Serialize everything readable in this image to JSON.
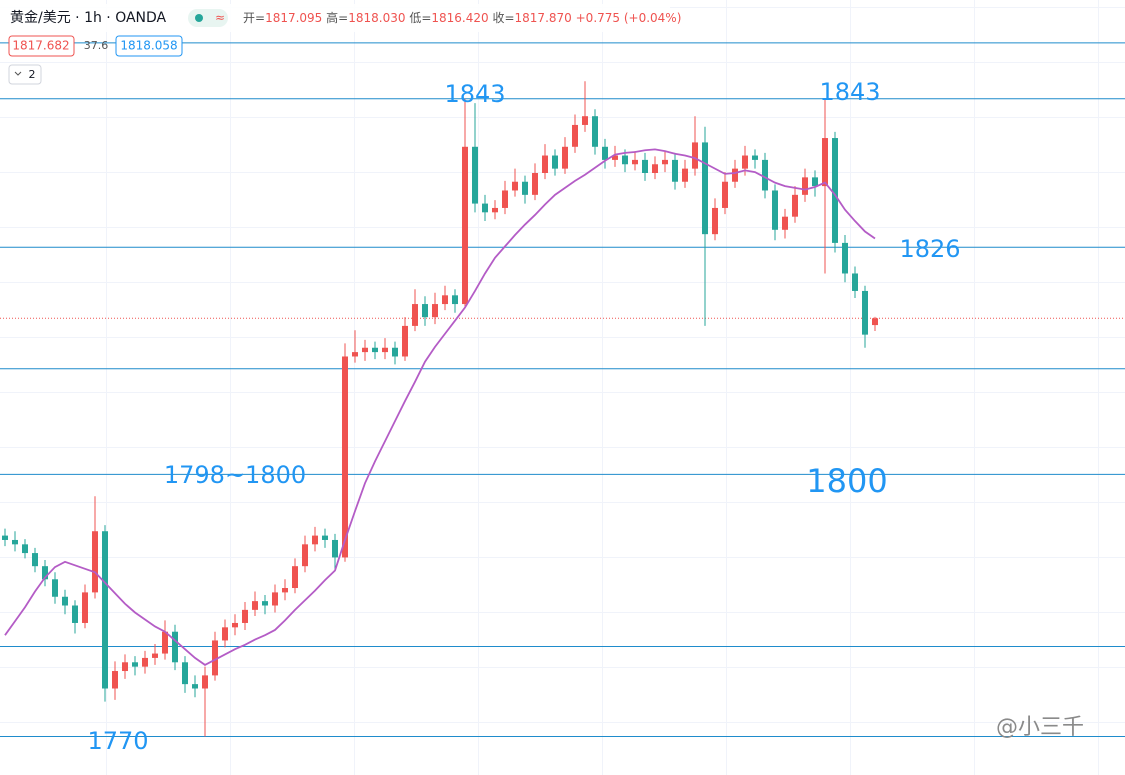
{
  "header": {
    "symbol": "黄金/美元 · 1h · OANDA",
    "ohlc": [
      {
        "label": "开=",
        "value": "1817.095"
      },
      {
        "label": "高=",
        "value": "1818.030"
      },
      {
        "label": "低=",
        "value": "1816.420"
      },
      {
        "label": "收=",
        "value": "1817.870"
      }
    ],
    "change": "+0.775 (+0.04%)",
    "bid": "1817.682",
    "spread": "37.6",
    "ask": "1818.058",
    "indicators": "2"
  },
  "watermark": "@小三千",
  "chart_data": {
    "type": "candlestick",
    "ylim": [
      1765.6,
      1854.3
    ],
    "up_color": "#ef5350",
    "down_color": "#26a69a",
    "line_color": "#1f8ccc",
    "price_line_color": "#ef5350",
    "hlines": [
      1849.4,
      1843,
      1826,
      1812.1,
      1800,
      1780.3,
      1770
    ],
    "annotations": [
      "1843",
      "1843",
      "1826",
      "1798~1800",
      "1800",
      "1770"
    ],
    "annotation_color": "#2196f3",
    "ohlc": [
      [
        1793.0,
        1793.8,
        1791.8,
        1792.5
      ],
      [
        1792.5,
        1793.5,
        1791.2,
        1792.0
      ],
      [
        1792.0,
        1792.6,
        1790.4,
        1791.0
      ],
      [
        1791.0,
        1791.6,
        1788.8,
        1789.5
      ],
      [
        1789.5,
        1790.2,
        1787.2,
        1788.0
      ],
      [
        1788.0,
        1788.8,
        1785.2,
        1786.0
      ],
      [
        1786.0,
        1786.8,
        1784.0,
        1785.0
      ],
      [
        1785.0,
        1785.6,
        1781.8,
        1783.0
      ],
      [
        1783.0,
        1787.4,
        1782.4,
        1786.5
      ],
      [
        1786.5,
        1797.5,
        1785.8,
        1793.5
      ],
      [
        1793.5,
        1794.2,
        1774.0,
        1775.5
      ],
      [
        1775.5,
        1778.6,
        1774.2,
        1777.5
      ],
      [
        1777.5,
        1779.4,
        1776.6,
        1778.5
      ],
      [
        1778.5,
        1779.2,
        1777.0,
        1778.0
      ],
      [
        1778.0,
        1779.8,
        1777.2,
        1779.0
      ],
      [
        1779.0,
        1780.6,
        1778.2,
        1779.5
      ],
      [
        1779.5,
        1783.3,
        1778.8,
        1782.0
      ],
      [
        1782.0,
        1782.8,
        1777.6,
        1778.5
      ],
      [
        1778.5,
        1779.2,
        1775.0,
        1776.0
      ],
      [
        1776.0,
        1777.0,
        1774.5,
        1775.5
      ],
      [
        1775.5,
        1778.0,
        1770.0,
        1777.0
      ],
      [
        1777.0,
        1782.0,
        1776.4,
        1781.0
      ],
      [
        1781.0,
        1783.4,
        1780.2,
        1782.5
      ],
      [
        1782.5,
        1784.0,
        1781.6,
        1783.0
      ],
      [
        1783.0,
        1785.4,
        1782.2,
        1784.5
      ],
      [
        1784.5,
        1786.6,
        1783.8,
        1785.5
      ],
      [
        1785.5,
        1786.2,
        1784.0,
        1785.0
      ],
      [
        1785.0,
        1787.4,
        1784.2,
        1786.5
      ],
      [
        1786.5,
        1788.0,
        1785.6,
        1787.0
      ],
      [
        1787.0,
        1790.4,
        1786.4,
        1789.5
      ],
      [
        1789.5,
        1793.0,
        1788.8,
        1792.0
      ],
      [
        1792.0,
        1794.0,
        1791.2,
        1793.0
      ],
      [
        1793.0,
        1793.8,
        1791.6,
        1792.5
      ],
      [
        1792.5,
        1793.2,
        1789.0,
        1790.5
      ],
      [
        1790.5,
        1815.0,
        1790.0,
        1813.5
      ],
      [
        1813.5,
        1816.5,
        1812.8,
        1814.0
      ],
      [
        1814.0,
        1815.4,
        1813.0,
        1814.5
      ],
      [
        1814.5,
        1815.2,
        1813.2,
        1814.0
      ],
      [
        1814.0,
        1815.6,
        1813.2,
        1814.5
      ],
      [
        1814.5,
        1815.2,
        1812.6,
        1813.5
      ],
      [
        1813.5,
        1818.0,
        1813.0,
        1817.0
      ],
      [
        1817.0,
        1821.2,
        1816.4,
        1819.5
      ],
      [
        1819.5,
        1820.4,
        1817.0,
        1818.0
      ],
      [
        1818.0,
        1820.8,
        1817.2,
        1819.5
      ],
      [
        1819.5,
        1821.6,
        1818.8,
        1820.5
      ],
      [
        1820.5,
        1821.2,
        1818.5,
        1819.5
      ],
      [
        1819.5,
        1843.0,
        1819.0,
        1837.5
      ],
      [
        1837.5,
        1842.5,
        1830.0,
        1831.0
      ],
      [
        1831.0,
        1832.0,
        1829.0,
        1830.0
      ],
      [
        1830.0,
        1831.4,
        1829.2,
        1830.5
      ],
      [
        1830.5,
        1833.6,
        1829.8,
        1832.5
      ],
      [
        1832.5,
        1835.0,
        1831.8,
        1833.5
      ],
      [
        1833.5,
        1834.2,
        1831.0,
        1832.0
      ],
      [
        1832.0,
        1835.6,
        1831.4,
        1834.5
      ],
      [
        1834.5,
        1837.8,
        1833.8,
        1836.5
      ],
      [
        1836.5,
        1837.2,
        1834.2,
        1835.0
      ],
      [
        1835.0,
        1838.6,
        1834.4,
        1837.5
      ],
      [
        1837.5,
        1841.2,
        1836.8,
        1840.0
      ],
      [
        1840.0,
        1845.0,
        1839.2,
        1841.0
      ],
      [
        1841.0,
        1841.8,
        1836.6,
        1837.5
      ],
      [
        1837.5,
        1838.4,
        1835.0,
        1836.0
      ],
      [
        1836.0,
        1837.6,
        1835.2,
        1836.5
      ],
      [
        1836.5,
        1837.2,
        1834.6,
        1835.5
      ],
      [
        1835.5,
        1837.0,
        1834.8,
        1836.0
      ],
      [
        1836.0,
        1836.8,
        1833.6,
        1834.5
      ],
      [
        1834.5,
        1836.4,
        1833.8,
        1835.5
      ],
      [
        1835.5,
        1837.0,
        1834.6,
        1836.0
      ],
      [
        1836.0,
        1836.8,
        1832.6,
        1833.5
      ],
      [
        1833.5,
        1836.0,
        1832.8,
        1835.0
      ],
      [
        1835.0,
        1841.0,
        1834.2,
        1838.0
      ],
      [
        1838.0,
        1839.8,
        1817.0,
        1827.5
      ],
      [
        1827.5,
        1831.6,
        1826.8,
        1830.5
      ],
      [
        1830.5,
        1834.6,
        1829.8,
        1833.5
      ],
      [
        1833.5,
        1836.0,
        1832.8,
        1835.0
      ],
      [
        1835.0,
        1837.6,
        1834.2,
        1836.5
      ],
      [
        1836.5,
        1837.2,
        1835.0,
        1836.0
      ],
      [
        1836.0,
        1836.8,
        1831.6,
        1832.5
      ],
      [
        1832.5,
        1833.2,
        1826.8,
        1828.0
      ],
      [
        1828.0,
        1830.4,
        1827.0,
        1829.5
      ],
      [
        1829.5,
        1833.0,
        1828.8,
        1832.0
      ],
      [
        1832.0,
        1835.0,
        1831.2,
        1834.0
      ],
      [
        1834.0,
        1834.8,
        1831.8,
        1833.0
      ],
      [
        1833.0,
        1843.0,
        1823.0,
        1838.5
      ],
      [
        1838.5,
        1839.2,
        1825.4,
        1826.5
      ],
      [
        1826.5,
        1827.4,
        1822.0,
        1823.0
      ],
      [
        1823.0,
        1823.8,
        1820.2,
        1821.0
      ],
      [
        1821.0,
        1821.6,
        1814.5,
        1816.0
      ],
      [
        1817.095,
        1818.03,
        1816.42,
        1817.87
      ]
    ],
    "ma": {
      "color": "#b45cc6",
      "values": [
        1781.6,
        1783.2,
        1784.8,
        1786.6,
        1788.2,
        1789.4,
        1790.0,
        1789.6,
        1789.2,
        1788.8,
        1787.6,
        1786.4,
        1785.2,
        1784.2,
        1783.4,
        1782.6,
        1782.0,
        1781.0,
        1780.0,
        1779.0,
        1778.2,
        1778.8,
        1779.4,
        1780.0,
        1780.5,
        1781.1,
        1781.6,
        1782.2,
        1783.3,
        1784.5,
        1785.6,
        1786.7,
        1787.9,
        1789.0,
        1792.5,
        1795.8,
        1799.0,
        1801.5,
        1803.8,
        1806.1,
        1808.4,
        1810.6,
        1812.9,
        1814.6,
        1816.1,
        1817.6,
        1819.1,
        1821.0,
        1823.0,
        1824.8,
        1826.1,
        1827.4,
        1828.6,
        1829.7,
        1830.9,
        1832.0,
        1832.8,
        1833.6,
        1834.3,
        1835.1,
        1835.9,
        1836.6,
        1836.8,
        1836.9,
        1837.1,
        1837.2,
        1837.0,
        1836.7,
        1836.5,
        1836.2,
        1835.6,
        1835.0,
        1834.4,
        1834.5,
        1834.8,
        1834.6,
        1834.0,
        1833.4,
        1833.0,
        1832.8,
        1832.6,
        1832.9,
        1833.4,
        1832.0,
        1830.3,
        1829.0,
        1827.8,
        1827.0
      ]
    }
  }
}
